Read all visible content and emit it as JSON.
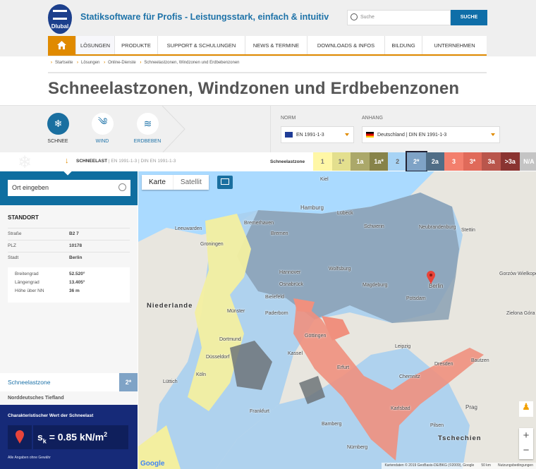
{
  "header": {
    "logo_text": "Dlubal",
    "tagline": "Statiksoftware für Profis - Leistungsstark, einfach & intuitiv",
    "search_placeholder": "Suche",
    "search_button": "SUCHE"
  },
  "nav": {
    "home_icon": "home-icon",
    "items": [
      "LÖSUNGEN",
      "PRODUKTE",
      "SUPPORT & SCHULUNGEN",
      "NEWS & TERMINE",
      "DOWNLOADS & INFOS",
      "BILDUNG",
      "UNTERNEHMEN"
    ]
  },
  "breadcrumb": [
    "Startseite",
    "Lösungen",
    "Online-Dienste",
    "Schneelastzonen, Windzonen und Erdbebenzonen"
  ],
  "page_title": "Schneelastzonen, Windzonen und Erdbebenzonen",
  "tabs": [
    {
      "label": "SCHNEE",
      "icon": "snowflake-icon"
    },
    {
      "label": "WIND",
      "icon": "wind-icon"
    },
    {
      "label": "ERDBEBEN",
      "icon": "seismic-icon"
    }
  ],
  "norm": {
    "label": "NORM",
    "value": "EN 1991-1-3"
  },
  "anhang": {
    "label": "ANHANG",
    "value": "Deutschland | DIN EN 1991-1-3"
  },
  "subbar": {
    "title": "SCHNEELAST",
    "norm": "EN 1991-1-3",
    "annex": "DIN EN 1991-1-3",
    "legend_label": "Schneelastzone"
  },
  "zones": [
    {
      "label": "1",
      "color": "#fff7a6",
      "text": "#777"
    },
    {
      "label": "1*",
      "color": "#e3df8e",
      "text": "#777"
    },
    {
      "label": "1a",
      "color": "#aba86a",
      "text": "#fff"
    },
    {
      "label": "1a*",
      "color": "#878349",
      "text": "#fff"
    },
    {
      "label": "2",
      "color": "#a7d3f5",
      "text": "#666"
    },
    {
      "label": "2*",
      "color": "#7fa3c6",
      "text": "#fff",
      "selected": true
    },
    {
      "label": "2a",
      "color": "#506d86",
      "text": "#fff"
    },
    {
      "label": "3",
      "color": "#f37f6d",
      "text": "#fff"
    },
    {
      "label": "3*",
      "color": "#e06a5a",
      "text": "#fff"
    },
    {
      "label": "3a",
      "color": "#b9564c",
      "text": "#fff"
    },
    {
      "label": ">3a",
      "color": "#8a3431",
      "text": "#fff"
    },
    {
      "label": "N/A",
      "color": "#c4c4c4",
      "text": "#fff"
    }
  ],
  "sidebar": {
    "search_placeholder": "Ort eingeben",
    "standort_title": "STANDORT",
    "fields": [
      {
        "label": "Straße",
        "value": "B2 7"
      },
      {
        "label": "PLZ",
        "value": "10178"
      },
      {
        "label": "Stadt",
        "value": "Berlin"
      }
    ],
    "coords": [
      {
        "label": "Breitengrad",
        "value": "52.520°"
      },
      {
        "label": "Längengrad",
        "value": "13.405°"
      },
      {
        "label": "Höhe über NN",
        "value": "36 m"
      }
    ],
    "zone_label": "Schneelastzone",
    "zone_value": "2*",
    "region": "Norddeutsches Tiefland",
    "result_title": "Charakteristischer Wert der Schneelast",
    "result_symbol": "s",
    "result_sub": "k",
    "result_value": "= 0.85 kN/m",
    "result_exp": "2",
    "disclaimer": "Alle Angaben ohne Gewähr"
  },
  "map": {
    "type_buttons": [
      "Karte",
      "Satellit"
    ],
    "attribution": "Kartendaten © 2019 GeoBasis-DE/BKG (©2009), Google",
    "scale": "50 km",
    "terms": "Nutzungsbedingungen",
    "google": "Google",
    "countries": [
      "Niederlande",
      "Tschechien"
    ],
    "cities": [
      "Kiel",
      "Lübeck",
      "Hamburg",
      "Schwerin",
      "Neubrandenburg",
      "Stettin",
      "Bremerhaven",
      "Bremen",
      "Groningen",
      "Leeuwarden",
      "Hannover",
      "Wolfsburg",
      "Magdeburg",
      "Berlin",
      "Potsdam",
      "Bielefeld",
      "Osnabrück",
      "Münster",
      "Dortmund",
      "Düsseldorf",
      "Köln",
      "Göttingen",
      "Kassel",
      "Leipzig",
      "Dresden",
      "Chemnitz",
      "Erfurt",
      "Frankfurt",
      "Nürnberg",
      "Bamberg",
      "Prag",
      "Pilsen",
      "Karlsbad",
      "Zielona Góra",
      "Gorzów Wielkopolski",
      "Bautzen",
      "Paderborn",
      "Lüttich"
    ]
  }
}
